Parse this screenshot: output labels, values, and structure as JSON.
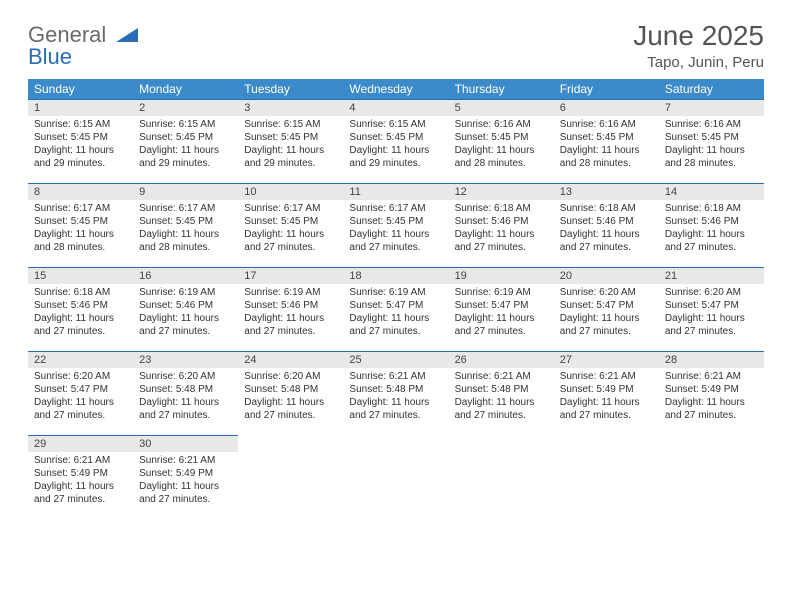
{
  "logo": {
    "text_gray": "General",
    "text_blue": "Blue",
    "gray_color": "#6b6b6b",
    "blue_color": "#2a6db5"
  },
  "header": {
    "month_title": "June 2025",
    "location": "Tapo, Junin, Peru",
    "title_color": "#555555"
  },
  "styling": {
    "header_bg": "#3b8ac9",
    "header_text": "#ffffff",
    "daynum_bg": "#e8e8e8",
    "row_border": "#2a6db5",
    "body_text": "#333333",
    "font_daynum": 11,
    "font_daytext": 10,
    "font_dayheader": 12
  },
  "day_headers": [
    "Sunday",
    "Monday",
    "Tuesday",
    "Wednesday",
    "Thursday",
    "Friday",
    "Saturday"
  ],
  "weeks": [
    [
      {
        "n": "1",
        "sr": "Sunrise: 6:15 AM",
        "ss": "Sunset: 5:45 PM",
        "d1": "Daylight: 11 hours",
        "d2": "and 29 minutes."
      },
      {
        "n": "2",
        "sr": "Sunrise: 6:15 AM",
        "ss": "Sunset: 5:45 PM",
        "d1": "Daylight: 11 hours",
        "d2": "and 29 minutes."
      },
      {
        "n": "3",
        "sr": "Sunrise: 6:15 AM",
        "ss": "Sunset: 5:45 PM",
        "d1": "Daylight: 11 hours",
        "d2": "and 29 minutes."
      },
      {
        "n": "4",
        "sr": "Sunrise: 6:15 AM",
        "ss": "Sunset: 5:45 PM",
        "d1": "Daylight: 11 hours",
        "d2": "and 29 minutes."
      },
      {
        "n": "5",
        "sr": "Sunrise: 6:16 AM",
        "ss": "Sunset: 5:45 PM",
        "d1": "Daylight: 11 hours",
        "d2": "and 28 minutes."
      },
      {
        "n": "6",
        "sr": "Sunrise: 6:16 AM",
        "ss": "Sunset: 5:45 PM",
        "d1": "Daylight: 11 hours",
        "d2": "and 28 minutes."
      },
      {
        "n": "7",
        "sr": "Sunrise: 6:16 AM",
        "ss": "Sunset: 5:45 PM",
        "d1": "Daylight: 11 hours",
        "d2": "and 28 minutes."
      }
    ],
    [
      {
        "n": "8",
        "sr": "Sunrise: 6:17 AM",
        "ss": "Sunset: 5:45 PM",
        "d1": "Daylight: 11 hours",
        "d2": "and 28 minutes."
      },
      {
        "n": "9",
        "sr": "Sunrise: 6:17 AM",
        "ss": "Sunset: 5:45 PM",
        "d1": "Daylight: 11 hours",
        "d2": "and 28 minutes."
      },
      {
        "n": "10",
        "sr": "Sunrise: 6:17 AM",
        "ss": "Sunset: 5:45 PM",
        "d1": "Daylight: 11 hours",
        "d2": "and 27 minutes."
      },
      {
        "n": "11",
        "sr": "Sunrise: 6:17 AM",
        "ss": "Sunset: 5:45 PM",
        "d1": "Daylight: 11 hours",
        "d2": "and 27 minutes."
      },
      {
        "n": "12",
        "sr": "Sunrise: 6:18 AM",
        "ss": "Sunset: 5:46 PM",
        "d1": "Daylight: 11 hours",
        "d2": "and 27 minutes."
      },
      {
        "n": "13",
        "sr": "Sunrise: 6:18 AM",
        "ss": "Sunset: 5:46 PM",
        "d1": "Daylight: 11 hours",
        "d2": "and 27 minutes."
      },
      {
        "n": "14",
        "sr": "Sunrise: 6:18 AM",
        "ss": "Sunset: 5:46 PM",
        "d1": "Daylight: 11 hours",
        "d2": "and 27 minutes."
      }
    ],
    [
      {
        "n": "15",
        "sr": "Sunrise: 6:18 AM",
        "ss": "Sunset: 5:46 PM",
        "d1": "Daylight: 11 hours",
        "d2": "and 27 minutes."
      },
      {
        "n": "16",
        "sr": "Sunrise: 6:19 AM",
        "ss": "Sunset: 5:46 PM",
        "d1": "Daylight: 11 hours",
        "d2": "and 27 minutes."
      },
      {
        "n": "17",
        "sr": "Sunrise: 6:19 AM",
        "ss": "Sunset: 5:46 PM",
        "d1": "Daylight: 11 hours",
        "d2": "and 27 minutes."
      },
      {
        "n": "18",
        "sr": "Sunrise: 6:19 AM",
        "ss": "Sunset: 5:47 PM",
        "d1": "Daylight: 11 hours",
        "d2": "and 27 minutes."
      },
      {
        "n": "19",
        "sr": "Sunrise: 6:19 AM",
        "ss": "Sunset: 5:47 PM",
        "d1": "Daylight: 11 hours",
        "d2": "and 27 minutes."
      },
      {
        "n": "20",
        "sr": "Sunrise: 6:20 AM",
        "ss": "Sunset: 5:47 PM",
        "d1": "Daylight: 11 hours",
        "d2": "and 27 minutes."
      },
      {
        "n": "21",
        "sr": "Sunrise: 6:20 AM",
        "ss": "Sunset: 5:47 PM",
        "d1": "Daylight: 11 hours",
        "d2": "and 27 minutes."
      }
    ],
    [
      {
        "n": "22",
        "sr": "Sunrise: 6:20 AM",
        "ss": "Sunset: 5:47 PM",
        "d1": "Daylight: 11 hours",
        "d2": "and 27 minutes."
      },
      {
        "n": "23",
        "sr": "Sunrise: 6:20 AM",
        "ss": "Sunset: 5:48 PM",
        "d1": "Daylight: 11 hours",
        "d2": "and 27 minutes."
      },
      {
        "n": "24",
        "sr": "Sunrise: 6:20 AM",
        "ss": "Sunset: 5:48 PM",
        "d1": "Daylight: 11 hours",
        "d2": "and 27 minutes."
      },
      {
        "n": "25",
        "sr": "Sunrise: 6:21 AM",
        "ss": "Sunset: 5:48 PM",
        "d1": "Daylight: 11 hours",
        "d2": "and 27 minutes."
      },
      {
        "n": "26",
        "sr": "Sunrise: 6:21 AM",
        "ss": "Sunset: 5:48 PM",
        "d1": "Daylight: 11 hours",
        "d2": "and 27 minutes."
      },
      {
        "n": "27",
        "sr": "Sunrise: 6:21 AM",
        "ss": "Sunset: 5:49 PM",
        "d1": "Daylight: 11 hours",
        "d2": "and 27 minutes."
      },
      {
        "n": "28",
        "sr": "Sunrise: 6:21 AM",
        "ss": "Sunset: 5:49 PM",
        "d1": "Daylight: 11 hours",
        "d2": "and 27 minutes."
      }
    ],
    [
      {
        "n": "29",
        "sr": "Sunrise: 6:21 AM",
        "ss": "Sunset: 5:49 PM",
        "d1": "Daylight: 11 hours",
        "d2": "and 27 minutes."
      },
      {
        "n": "30",
        "sr": "Sunrise: 6:21 AM",
        "ss": "Sunset: 5:49 PM",
        "d1": "Daylight: 11 hours",
        "d2": "and 27 minutes."
      },
      null,
      null,
      null,
      null,
      null
    ]
  ]
}
